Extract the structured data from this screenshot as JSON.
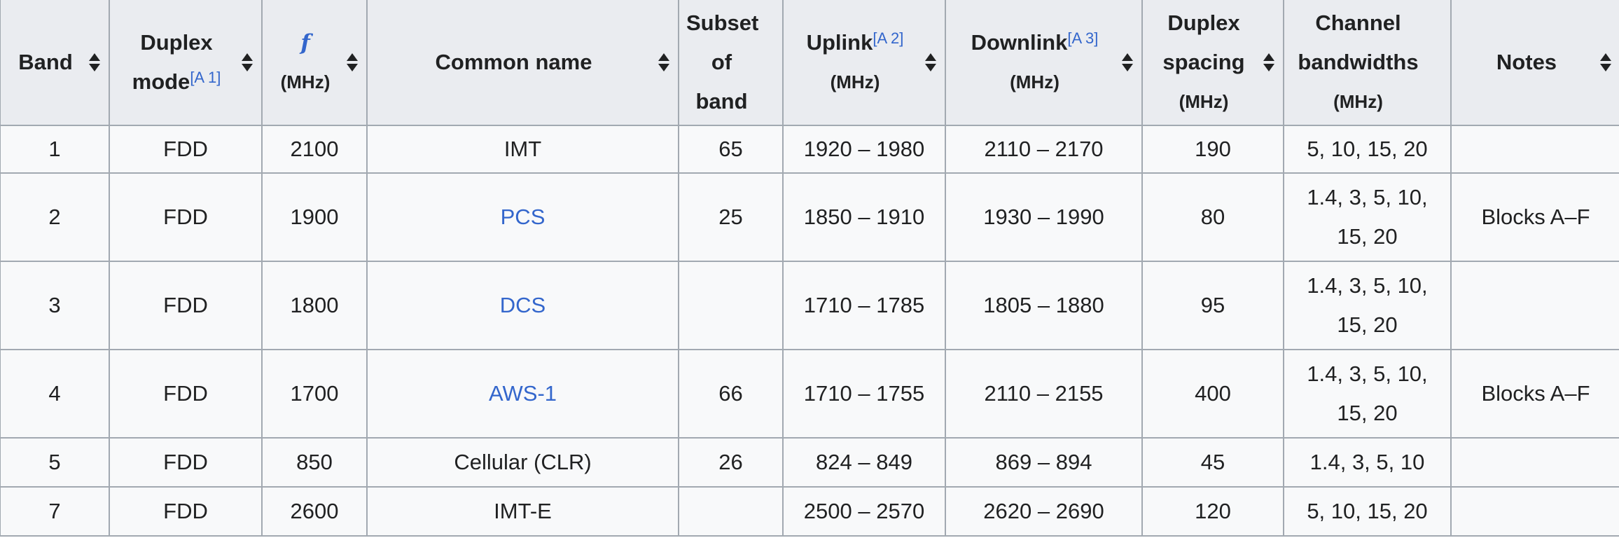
{
  "headers": [
    {
      "label": "Band"
    },
    {
      "label": "Duplex mode",
      "note": "[A 1]"
    },
    {
      "label": "f",
      "unit": "(MHz)"
    },
    {
      "label": "Common name"
    },
    {
      "label": "Subset of band",
      "sortable": false
    },
    {
      "label": "Uplink",
      "note": "[A 2]",
      "unit": "(MHz)"
    },
    {
      "label": "Downlink",
      "note": "[A 3]",
      "unit": "(MHz)"
    },
    {
      "label": "Duplex spacing",
      "unit": "(MHz)"
    },
    {
      "label": "Channel bandwidths",
      "unit": "(MHz)",
      "sortable": false
    },
    {
      "label": "Notes"
    }
  ],
  "rows": [
    {
      "band": "1",
      "mode": "FDD",
      "f": "2100",
      "name": "IMT",
      "name_link": false,
      "subset": "65",
      "uplink": "1920 – 1980",
      "downlink": "2110 – 2170",
      "spacing": "190",
      "bw": "5, 10, 15, 20",
      "notes": ""
    },
    {
      "band": "2",
      "mode": "FDD",
      "f": "1900",
      "name": "PCS",
      "name_link": true,
      "subset": "25",
      "uplink": "1850 – 1910",
      "downlink": "1930 – 1990",
      "spacing": "80",
      "bw": "1.4, 3, 5, 10, 15, 20",
      "notes": "Blocks A–F"
    },
    {
      "band": "3",
      "mode": "FDD",
      "f": "1800",
      "name": "DCS",
      "name_link": true,
      "subset": "",
      "uplink": "1710 – 1785",
      "downlink": "1805 – 1880",
      "spacing": "95",
      "bw": "1.4, 3, 5, 10, 15, 20",
      "notes": ""
    },
    {
      "band": "4",
      "mode": "FDD",
      "f": "1700",
      "name": "AWS-1",
      "name_link": true,
      "subset": "66",
      "uplink": "1710 – 1755",
      "downlink": "2110 – 2155",
      "spacing": "400",
      "bw": "1.4, 3, 5, 10, 15, 20",
      "notes": "Blocks A–F"
    },
    {
      "band": "5",
      "mode": "FDD",
      "f": "850",
      "name": "Cellular (CLR)",
      "name_link": false,
      "subset": "26",
      "uplink": "824 – 849",
      "downlink": "869 – 894",
      "spacing": "45",
      "bw": "1.4, 3, 5, 10",
      "notes": ""
    },
    {
      "band": "7",
      "mode": "FDD",
      "f": "2600",
      "name": "IMT-E",
      "name_link": false,
      "subset": "",
      "uplink": "2500 – 2570",
      "downlink": "2620 – 2690",
      "spacing": "120",
      "bw": "5, 10, 15, 20",
      "notes": ""
    }
  ],
  "colors": {
    "header_bg": "#eaecf0",
    "cell_bg": "#f8f9fa",
    "border": "#a2a9b1",
    "link": "#3366cc"
  }
}
